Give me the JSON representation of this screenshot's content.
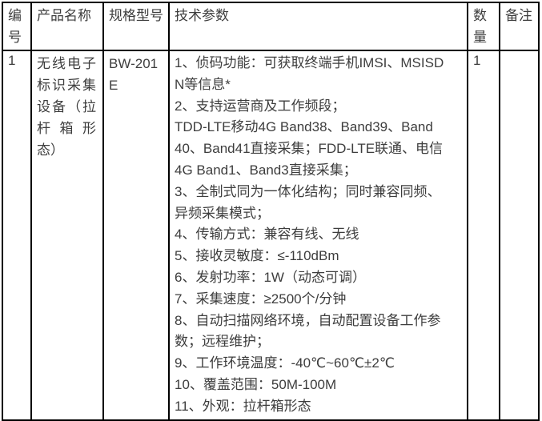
{
  "page": {
    "background_color": "#ffffff",
    "text_color": "#3d3d3d",
    "border_color": "#000000"
  },
  "table": {
    "headers": [
      {
        "label": "编号"
      },
      {
        "label": "产品名称"
      },
      {
        "label": "规格型号"
      },
      {
        "label": "技术参数"
      },
      {
        "label": "数量"
      },
      {
        "label": "备注"
      }
    ],
    "rows": [
      {
        "serial": "1",
        "product_name": "无线电子标识采集设备（拉杆箱形态）",
        "model": "BW-201E",
        "tech_param_lines": [
          "1、侦码功能：可获取终端手机IMSI、MSISD",
          "N等信息*",
          "2、支持运营商及工作频段；",
          "TDD-LTE移动4G Band38、Band39、Band",
          "40、Band41直接采集；FDD-LTE联通、电信",
          "4G Band1、Band3直接采集；",
          "3、全制式同为一体化结构；同时兼容同频、",
          "异频采集模式；",
          "4、传输方式：兼容有线、无线",
          "5、接收灵敏度：≤-110dBm",
          "6、发射功率：1W（动态可调）",
          "7、采集速度：≥2500个/分钟",
          "8、自动扫描网络环境，自动配置设备工作参",
          "数；远程维护；",
          "9、工作环境温度：-40℃~60℃±2℃",
          "10、覆盖范围：50M-100M",
          "11、外观：拉杆箱形态"
        ],
        "quantity": "1",
        "remark": ""
      }
    ]
  }
}
